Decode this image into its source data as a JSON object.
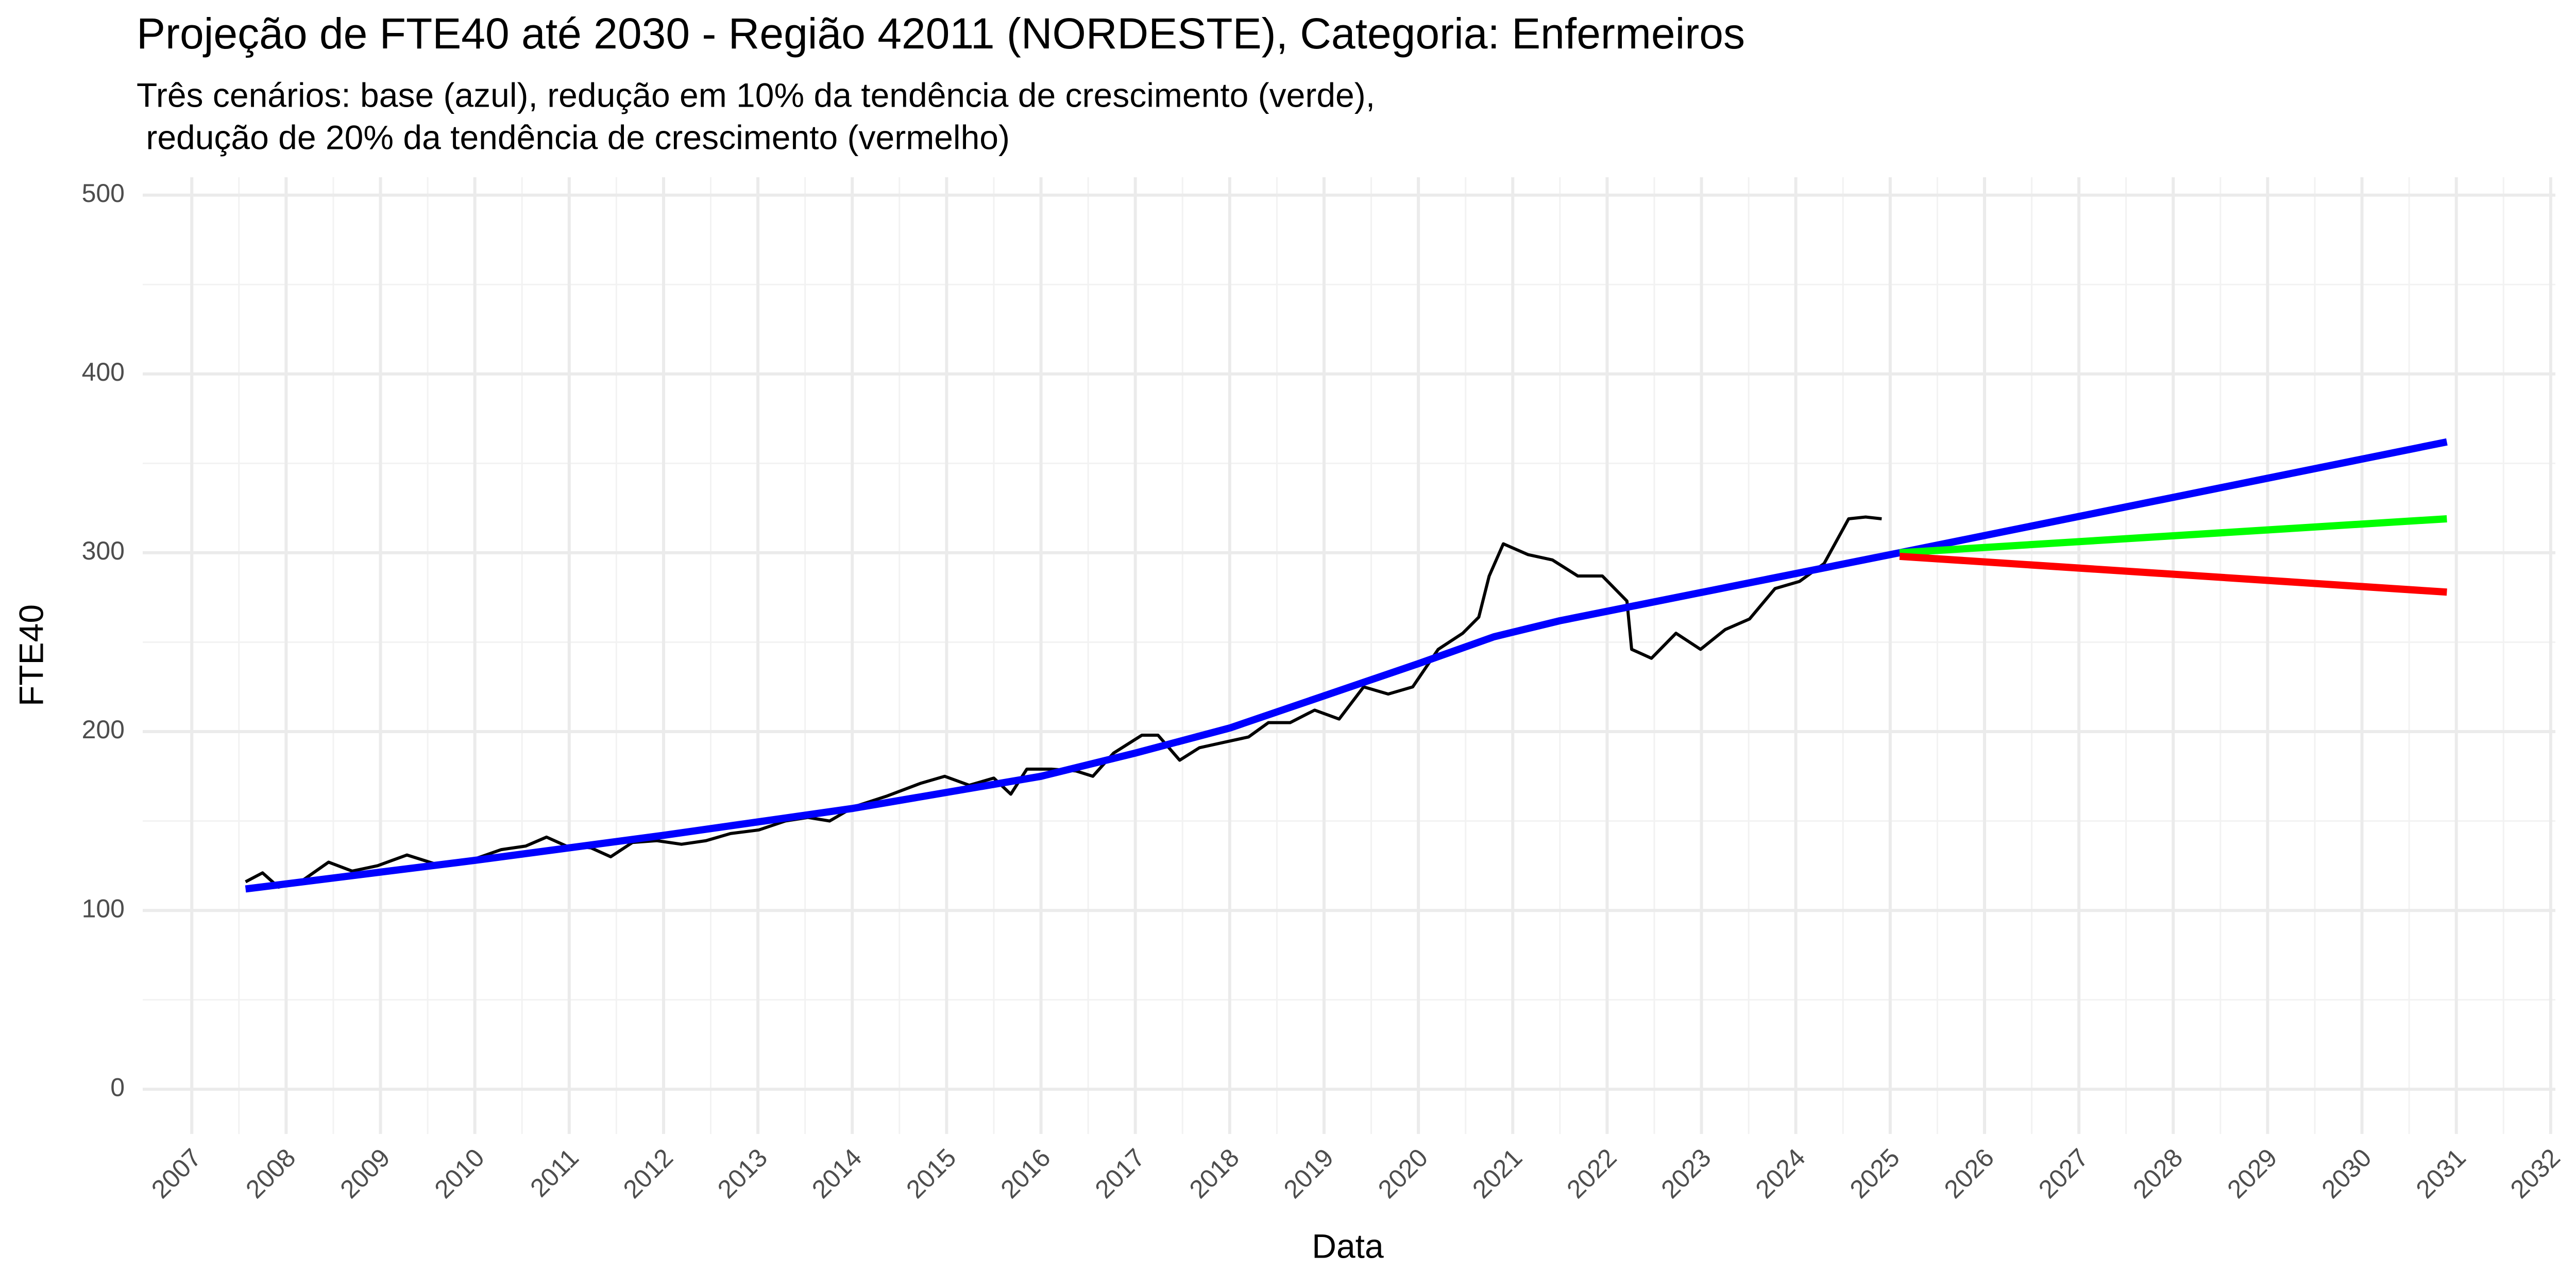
{
  "chart_data": {
    "type": "line",
    "title": "Projeção de FTE40 até 2030 - Região 42011 (NORDESTE), Categoria: Enfermeiros",
    "subtitle": [
      "Três cenários: base (azul), redução em 10% da tendência de crescimento (verde),",
      " redução de 20% da tendência de crescimento (vermelho)"
    ],
    "x_label": "Data",
    "y_label": "FTE40",
    "xlim": [
      2006.48,
      2032.05
    ],
    "ylim": [
      -25,
      510
    ],
    "xticks": [
      2007,
      2008,
      2009,
      2010,
      2011,
      2012,
      2013,
      2014,
      2015,
      2016,
      2017,
      2018,
      2019,
      2020,
      2021,
      2022,
      2023,
      2024,
      2025,
      2026,
      2027,
      2028,
      2029,
      2030,
      2031,
      2032
    ],
    "yticks": [
      0,
      100,
      200,
      300,
      400,
      500
    ],
    "grid": true,
    "series": [
      {
        "color": "#000000",
        "width": 6,
        "x": [
          2007.57,
          2007.75,
          2007.92,
          2008.18,
          2008.45,
          2008.7,
          2008.97,
          2009.28,
          2009.58,
          2010.01,
          2010.28,
          2010.54,
          2010.76,
          2010.97,
          2011.23,
          2011.44,
          2011.67,
          2011.93,
          2012.19,
          2012.45,
          2012.71,
          2013.01,
          2013.29,
          2013.53,
          2013.76,
          2014.02,
          2014.37,
          2014.72,
          2014.98,
          2015.24,
          2015.5,
          2015.68,
          2015.85,
          2016.11,
          2016.37,
          2016.55,
          2016.77,
          2017.07,
          2017.24,
          2017.47,
          2017.68,
          2017.94,
          2018.2,
          2018.41,
          2018.64,
          2018.9,
          2019.16,
          2019.42,
          2019.68,
          2019.94,
          2020.21,
          2020.47,
          2020.64,
          2020.75,
          2020.9,
          2021.16,
          2021.42,
          2021.69,
          2021.95,
          2022.21,
          2022.26,
          2022.47,
          2022.73,
          2022.99,
          2023.25,
          2023.51,
          2023.78,
          2024.04,
          2024.3,
          2024.56,
          2024.74,
          2024.91
        ],
        "values": [
          116,
          121,
          113,
          117,
          127,
          122,
          125,
          131,
          126,
          129,
          134,
          136,
          141,
          136,
          135,
          130,
          138,
          139,
          137,
          139,
          143,
          145,
          150,
          152,
          150,
          158,
          164,
          171,
          175,
          170,
          174,
          165,
          179,
          179,
          178,
          175,
          188,
          198,
          198,
          184,
          191,
          194,
          197,
          205,
          205,
          212,
          207,
          225,
          221,
          225,
          246,
          255,
          264,
          287,
          305,
          299,
          296,
          287,
          287,
          273,
          246,
          241,
          255,
          246,
          257,
          263,
          280,
          284,
          294,
          319,
          320,
          319
        ]
      },
      {
        "color": "#0000ff",
        "width": 14,
        "x": [
          2007.57,
          2010,
          2012,
          2014,
          2016,
          2017,
          2018,
          2019,
          2020,
          2020.8,
          2021.5,
          2025.1,
          2030.9
        ],
        "values": [
          112,
          128,
          142,
          157,
          175,
          188,
          202,
          220,
          238,
          253,
          262,
          300,
          362
        ]
      },
      {
        "color": "#00ff00",
        "width": 14,
        "x": [
          2025.1,
          2030.9
        ],
        "values": [
          300,
          319
        ]
      },
      {
        "color": "#ff0000",
        "width": 14,
        "x": [
          2025.1,
          2030.9
        ],
        "values": [
          298,
          278
        ]
      }
    ]
  }
}
